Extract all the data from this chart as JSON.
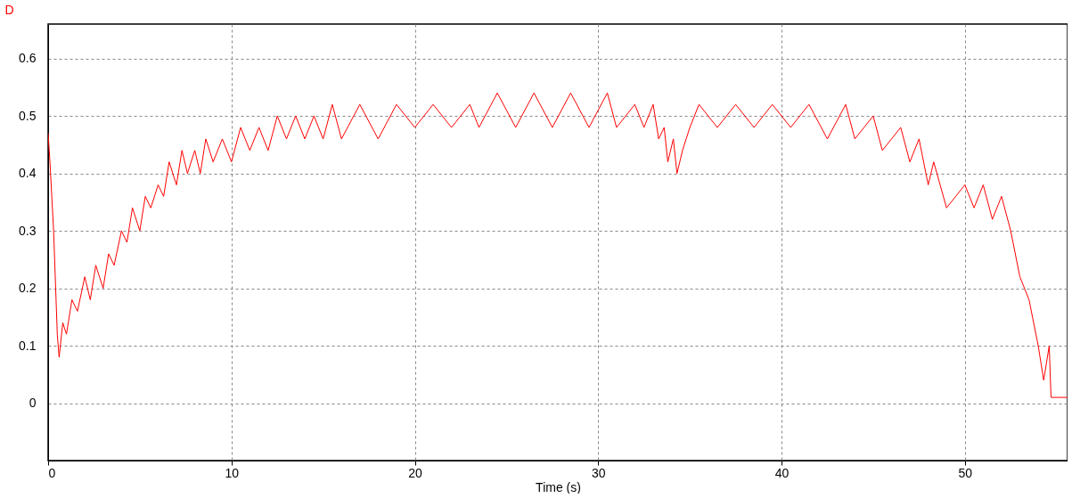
{
  "chart_data": {
    "type": "line",
    "title": "D",
    "xlabel": "Time (s)",
    "xlim": [
      0,
      55.6
    ],
    "ylim": [
      -0.1,
      0.66
    ],
    "xticks": [
      0,
      10,
      20,
      30,
      40,
      50
    ],
    "yticks": [
      0,
      0.1,
      0.2,
      0.3,
      0.4,
      0.5,
      0.6
    ],
    "grid": true,
    "line_style": "solid",
    "marker": "none",
    "series": [
      {
        "color": "#ff0000",
        "x": [
          0,
          0.1,
          0.3,
          0.5,
          0.6,
          0.8,
          1.0,
          1.3,
          1.6,
          2.0,
          2.3,
          2.6,
          3.0,
          3.3,
          3.6,
          4.0,
          4.3,
          4.6,
          5.0,
          5.3,
          5.6,
          6.0,
          6.3,
          6.6,
          7.0,
          7.3,
          7.6,
          8.0,
          8.3,
          8.6,
          9.0,
          9.5,
          10.0,
          10.5,
          11.0,
          11.5,
          12.0,
          12.5,
          13.0,
          13.5,
          14.0,
          14.5,
          15.0,
          15.5,
          16.0,
          17.0,
          18.0,
          19.0,
          20.0,
          21.0,
          22.0,
          23.0,
          23.5,
          24.5,
          25.5,
          26.5,
          27.5,
          28.5,
          29.5,
          30.5,
          31.0,
          32.0,
          32.5,
          33.0,
          33.3,
          33.6,
          33.8,
          34.1,
          34.3,
          34.6,
          35.0,
          35.5,
          36.5,
          37.5,
          38.5,
          39.5,
          40.5,
          41.5,
          42.5,
          43.5,
          44.0,
          45.0,
          45.5,
          46.5,
          47.0,
          47.5,
          48.0,
          48.3,
          49.0,
          50.0,
          50.5,
          51.0,
          51.5,
          52.0,
          52.5,
          53.0,
          53.5,
          54.0,
          54.3,
          54.6,
          54.7,
          55.6
        ],
        "values": [
          0.47,
          0.42,
          0.3,
          0.12,
          0.08,
          0.14,
          0.12,
          0.18,
          0.16,
          0.22,
          0.18,
          0.24,
          0.2,
          0.26,
          0.24,
          0.3,
          0.28,
          0.34,
          0.3,
          0.36,
          0.34,
          0.38,
          0.36,
          0.42,
          0.38,
          0.44,
          0.4,
          0.44,
          0.4,
          0.46,
          0.42,
          0.46,
          0.42,
          0.48,
          0.44,
          0.48,
          0.44,
          0.5,
          0.46,
          0.5,
          0.46,
          0.5,
          0.46,
          0.52,
          0.46,
          0.52,
          0.46,
          0.52,
          0.48,
          0.52,
          0.48,
          0.52,
          0.48,
          0.54,
          0.48,
          0.54,
          0.48,
          0.54,
          0.48,
          0.54,
          0.48,
          0.52,
          0.48,
          0.52,
          0.46,
          0.48,
          0.42,
          0.46,
          0.4,
          0.44,
          0.48,
          0.52,
          0.48,
          0.52,
          0.48,
          0.52,
          0.48,
          0.52,
          0.46,
          0.52,
          0.46,
          0.5,
          0.44,
          0.48,
          0.42,
          0.46,
          0.38,
          0.42,
          0.34,
          0.38,
          0.34,
          0.38,
          0.32,
          0.36,
          0.3,
          0.22,
          0.18,
          0.1,
          0.04,
          0.1,
          0.01,
          0.01
        ]
      }
    ]
  }
}
